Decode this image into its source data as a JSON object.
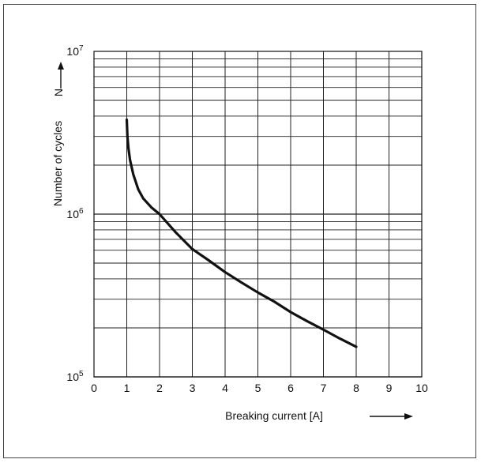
{
  "chart_data": {
    "type": "line",
    "title": "",
    "xlabel": "Breaking current  [A]",
    "ylabel": "Number of cycles",
    "ysymbol": "N",
    "xlim": [
      0,
      10
    ],
    "ylim": [
      100000,
      10000000
    ],
    "yscale": "log",
    "grid": true,
    "x_ticks": [
      0,
      1,
      2,
      3,
      4,
      5,
      6,
      7,
      8,
      9,
      10
    ],
    "x_tick_labels": [
      "0",
      "1",
      "2",
      "3",
      "4",
      "5",
      "6",
      "7",
      "8",
      "9",
      "10"
    ],
    "y_ticks": [
      {
        "value": 100000,
        "base": "10",
        "exp": "5"
      },
      {
        "value": 1000000,
        "base": "10",
        "exp": "6"
      },
      {
        "value": 10000000,
        "base": "10",
        "exp": "7"
      }
    ],
    "series": [
      {
        "x": [
          1.0,
          1.02,
          1.05,
          1.1,
          1.2,
          1.35,
          1.5,
          1.75,
          2.0,
          2.5,
          3.0,
          3.5,
          4.0,
          4.5,
          5.0,
          5.5,
          6.0,
          6.5,
          7.0,
          7.5,
          8.0
        ],
        "y": [
          3800000,
          3000000,
          2550000,
          2150000,
          1750000,
          1420000,
          1250000,
          1100000,
          1000000,
          770000,
          610000,
          520000,
          440000,
          380000,
          330000,
          290000,
          250000,
          220000,
          195000,
          172000,
          153000
        ],
        "color": "#111111"
      }
    ]
  }
}
